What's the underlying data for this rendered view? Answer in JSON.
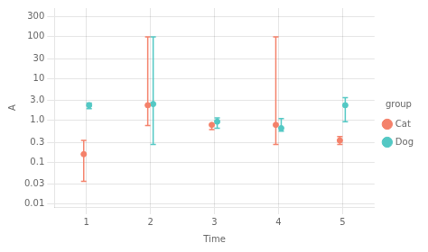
{
  "chart_data": {
    "type": "scatter",
    "xlabel": "Time",
    "ylabel": "A",
    "legend_title": "group",
    "log": "y",
    "grid": true,
    "legend": "right",
    "xlim": [
      0.5,
      5.5
    ],
    "xticks": [
      1,
      2,
      3,
      4,
      5
    ],
    "ylim": [
      0.0085,
      480
    ],
    "yticks": [
      0.01,
      0.03,
      0.1,
      0.3,
      {
        "value": 1,
        "label": "1.0"
      },
      {
        "value": 3,
        "label": "3.0"
      },
      10,
      30,
      100,
      300
    ],
    "series": [
      {
        "name": "Cat",
        "color": "#F4816A",
        "marker": "circle",
        "x": [
          1,
          2,
          3,
          4,
          5
        ],
        "values": [
          0.155,
          2.3,
          0.78,
          0.78,
          0.33
        ],
        "low": [
          0.035,
          0.75,
          0.6,
          0.265,
          0.265
        ],
        "high": [
          0.33,
          99,
          0.8,
          99,
          0.41
        ]
      },
      {
        "name": "Dog",
        "color": "#53C8C4",
        "marker": "circle",
        "x": [
          1,
          2,
          3,
          4,
          5
        ],
        "values": [
          2.3,
          2.45,
          0.93,
          0.65,
          2.3
        ],
        "low": [
          1.9,
          0.265,
          0.65,
          0.55,
          0.93
        ],
        "high": [
          2.6,
          99,
          1.15,
          1.1,
          3.5
        ]
      }
    ]
  }
}
